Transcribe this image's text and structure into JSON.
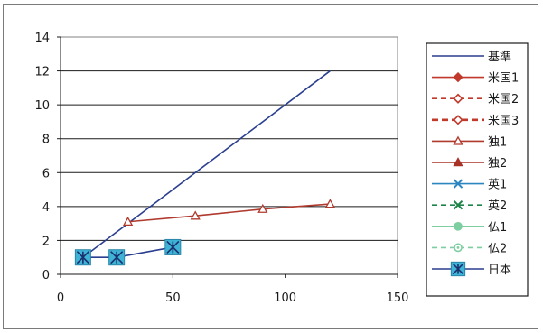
{
  "chart_data": {
    "type": "scatter",
    "title": "",
    "xlabel": "",
    "ylabel": "",
    "xlim": [
      0,
      150
    ],
    "ylim": [
      0,
      14
    ],
    "x_ticks": [
      "0",
      "50",
      "100",
      "150"
    ],
    "y_ticks": [
      "0",
      "2",
      "4",
      "6",
      "8",
      "10",
      "12",
      "14"
    ],
    "grid": "horizontal",
    "legend_position": "right",
    "series": [
      {
        "name": "基準",
        "color": "#2a3f8f",
        "marker": "none",
        "dash": "solid",
        "points": [
          [
            10,
            1
          ],
          [
            120,
            12
          ]
        ]
      },
      {
        "name": "米国1",
        "color": "#c0392b",
        "marker": "diamond-filled",
        "dash": "solid",
        "points": []
      },
      {
        "name": "米国2",
        "color": "#c0392b",
        "marker": "diamond-open",
        "dash": "dashed",
        "points": []
      },
      {
        "name": "米国3",
        "color": "#c0392b",
        "marker": "diamond-open",
        "dash": "dashed-thick",
        "points": []
      },
      {
        "name": "独1",
        "color": "#b03a2e",
        "marker": "triangle-open",
        "dash": "solid",
        "points": [
          [
            30,
            3.1
          ],
          [
            60,
            3.45
          ],
          [
            90,
            3.85
          ],
          [
            120,
            4.15
          ]
        ]
      },
      {
        "name": "独2",
        "color": "#a93226",
        "marker": "triangle-filled",
        "dash": "solid",
        "points": []
      },
      {
        "name": "英1",
        "color": "#2e86c1",
        "marker": "x",
        "dash": "solid",
        "points": []
      },
      {
        "name": "英2",
        "color": "#1e8449",
        "marker": "x",
        "dash": "dashed",
        "points": []
      },
      {
        "name": "仏1",
        "color": "#7dcea0",
        "marker": "circle-filled",
        "dash": "solid",
        "points": []
      },
      {
        "name": "仏2",
        "color": "#7dcea0",
        "marker": "circle-open",
        "dash": "dashed",
        "points": []
      },
      {
        "name": "日本",
        "color": "#2a3f8f",
        "marker": "asterisk-box",
        "dash": "solid",
        "points": [
          [
            10,
            1
          ],
          [
            25,
            1
          ],
          [
            50,
            1.6
          ]
        ]
      }
    ]
  }
}
